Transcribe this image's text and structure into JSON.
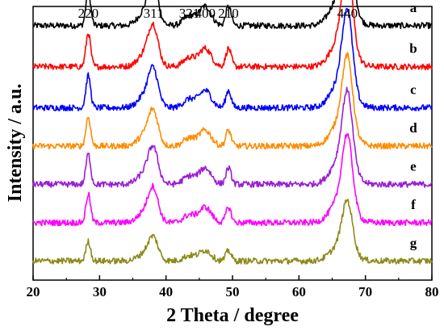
{
  "chart_data": {
    "type": "line",
    "xlabel": "2 Theta / degree",
    "ylabel": "Intensity / a.u.",
    "xlim": [
      20,
      80
    ],
    "x_ticks": [
      20,
      30,
      40,
      50,
      60,
      70,
      80
    ],
    "y_ticks_shown": false,
    "grid": false,
    "layout": "stacked curves, each offset vertically",
    "peaks": [
      {
        "label": "220",
        "two_theta": 28.3
      },
      {
        "label": "311",
        "two_theta": 38.1
      },
      {
        "label": "321",
        "two_theta": 43.5
      },
      {
        "label": "400",
        "two_theta": 45.9
      },
      {
        "label": "210",
        "two_theta": 49.4
      },
      {
        "label": "440",
        "two_theta": 67.3
      }
    ],
    "series": [
      {
        "name": "a",
        "color": "#000000",
        "baseline": 0.93,
        "scale": 1.0
      },
      {
        "name": "b",
        "color": "#ff0000",
        "baseline": 0.78,
        "scale": 0.95
      },
      {
        "name": "c",
        "color": "#0000ff",
        "baseline": 0.63,
        "scale": 0.9
      },
      {
        "name": "d",
        "color": "#ff8c00",
        "baseline": 0.49,
        "scale": 0.82
      },
      {
        "name": "e",
        "color": "#9a1ed6",
        "baseline": 0.35,
        "scale": 0.85
      },
      {
        "name": "f",
        "color": "#ff00ff",
        "baseline": 0.21,
        "scale": 0.8
      },
      {
        "name": "g",
        "color": "#8b8b1a",
        "baseline": 0.07,
        "scale": 0.55
      }
    ],
    "peak_shapes": [
      {
        "two_theta": 28.3,
        "height": 0.13,
        "width": 0.35
      },
      {
        "two_theta": 37.2,
        "height": 0.06,
        "width": 1.2
      },
      {
        "two_theta": 38.1,
        "height": 0.12,
        "width": 0.7
      },
      {
        "two_theta": 43.5,
        "height": 0.035,
        "width": 0.9
      },
      {
        "two_theta": 45.9,
        "height": 0.07,
        "width": 0.9
      },
      {
        "two_theta": 49.4,
        "height": 0.07,
        "width": 0.4
      },
      {
        "two_theta": 66.5,
        "height": 0.12,
        "width": 1.5
      },
      {
        "two_theta": 67.3,
        "height": 0.3,
        "width": 0.75
      }
    ]
  }
}
